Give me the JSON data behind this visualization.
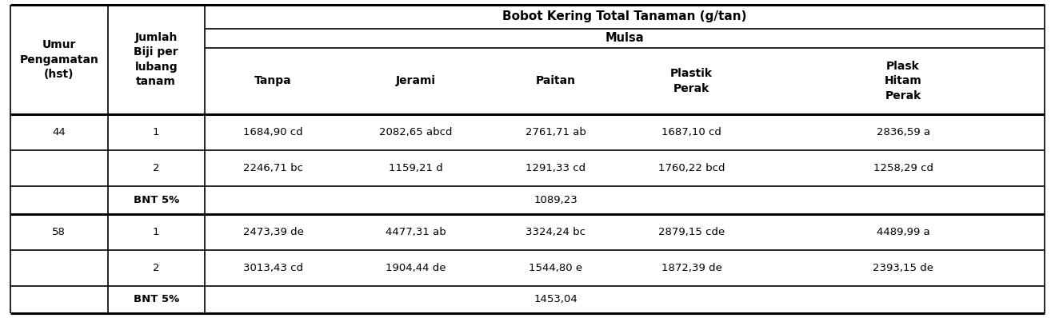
{
  "title_main": "Bobot Kering Total Tanaman (g/tan)",
  "title_sub": "Mulsa",
  "col_headers": [
    "Tanpa",
    "Jerami",
    "Paitan",
    "Plastik\nPerak",
    "Plask\nHitam\nPerak"
  ],
  "row_header1": "Umur\nPengamatan\n(hst)",
  "row_header2": "Jumlah\nBiji per\nlubang\ntanam",
  "data_rows": [
    [
      "44",
      "1",
      "1684,90 cd",
      "2082,65 abcd",
      "2761,71 ab",
      "1687,10 cd",
      "2836,59 a"
    ],
    [
      "",
      "2",
      "2246,71 bc",
      "1159,21 d",
      "1291,33 cd",
      "1760,22 bcd",
      "1258,29 cd"
    ],
    [
      "",
      "BNT 5%",
      "",
      "",
      "1089,23",
      "",
      ""
    ],
    [
      "58",
      "1",
      "2473,39 de",
      "4477,31 ab",
      "3324,24 bc",
      "2879,15 cde",
      "4489,99 a"
    ],
    [
      "",
      "2",
      "3013,43 cd",
      "1904,44 de",
      "1544,80 e",
      "1872,39 de",
      "2393,15 de"
    ],
    [
      "",
      "BNT 5%",
      "",
      "",
      "1453,04",
      "",
      ""
    ]
  ],
  "bg_color": "#ffffff",
  "line_color": "#000000",
  "fig_w": 13.19,
  "fig_h": 3.98,
  "dpi": 100
}
